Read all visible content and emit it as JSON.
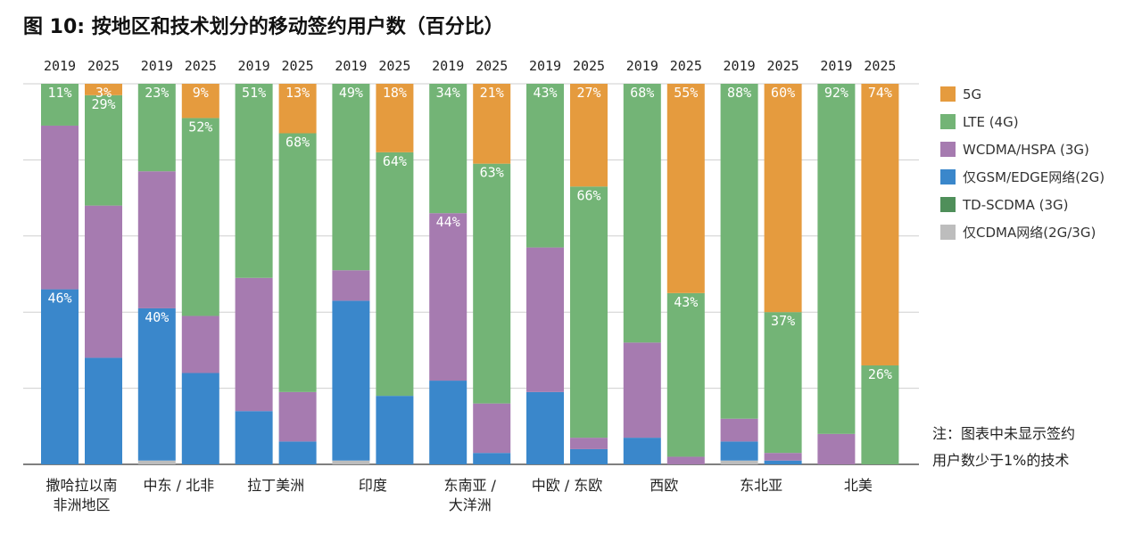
{
  "title": "图 10: 按地区和技术划分的移动签约用户数（百分比）",
  "note": [
    "注：图表中未显示签约",
    "用户数少于1%的技术"
  ],
  "chart_data": {
    "type": "bar",
    "stacked": true,
    "percent": true,
    "title": "图 10: 按地区和技术划分的移动签约用户数（百分比）",
    "xlabel": "",
    "ylabel": "",
    "ylim": [
      0,
      100
    ],
    "grid": true,
    "legend_position": "right",
    "years": [
      "2019",
      "2025"
    ],
    "regions": [
      {
        "name": [
          "撒哈拉以南",
          "非洲地区"
        ]
      },
      {
        "name": [
          "中东 / 北非"
        ]
      },
      {
        "name": [
          "拉丁美洲"
        ]
      },
      {
        "name": [
          "印度"
        ]
      },
      {
        "name": [
          "东南亚 /",
          "大洋洲"
        ]
      },
      {
        "name": [
          "中欧 / 东欧"
        ]
      },
      {
        "name": [
          "西欧"
        ]
      },
      {
        "name": [
          "东北亚"
        ]
      },
      {
        "name": [
          "北美"
        ]
      }
    ],
    "series": [
      {
        "key": "cdma",
        "name": "仅CDMA网络(2G/3G)",
        "color": "#bdbdbd"
      },
      {
        "key": "gsm",
        "name": "仅GSM/EDGE网络(2G)",
        "color": "#3a87cb"
      },
      {
        "key": "tdscdma",
        "name": "TD-SCDMA (3G)",
        "color": "#4f8f5a"
      },
      {
        "key": "wcdma",
        "name": "WCDMA/HSPA (3G)",
        "color": "#a67bb0"
      },
      {
        "key": "lte",
        "name": "LTE (4G)",
        "color": "#73b476"
      },
      {
        "key": "g5",
        "name": "5G",
        "color": "#e59b3e"
      }
    ],
    "legend_order": [
      "g5",
      "lte",
      "wcdma",
      "gsm",
      "tdscdma",
      "cdma"
    ],
    "bars": [
      {
        "region": 0,
        "year": "2019",
        "values": {
          "cdma": 0,
          "gsm": 46,
          "tdscdma": 0,
          "wcdma": 43,
          "lte": 11,
          "g5": 0
        },
        "labels": {
          "lte": "11%",
          "gsm": "46%"
        }
      },
      {
        "region": 0,
        "year": "2025",
        "values": {
          "cdma": 0,
          "gsm": 28,
          "tdscdma": 0,
          "wcdma": 40,
          "lte": 29,
          "g5": 3
        },
        "labels": {
          "g5": "3%",
          "lte": "29%"
        }
      },
      {
        "region": 1,
        "year": "2019",
        "values": {
          "cdma": 1,
          "gsm": 40,
          "tdscdma": 0,
          "wcdma": 36,
          "lte": 23,
          "g5": 0
        },
        "labels": {
          "lte": "23%",
          "gsm": "40%"
        }
      },
      {
        "region": 1,
        "year": "2025",
        "values": {
          "cdma": 0,
          "gsm": 24,
          "tdscdma": 0,
          "wcdma": 15,
          "lte": 52,
          "g5": 9
        },
        "labels": {
          "g5": "9%",
          "lte": "52%"
        }
      },
      {
        "region": 2,
        "year": "2019",
        "values": {
          "cdma": 0,
          "gsm": 14,
          "tdscdma": 0,
          "wcdma": 35,
          "lte": 51,
          "g5": 0
        },
        "labels": {
          "lte": "51%"
        }
      },
      {
        "region": 2,
        "year": "2025",
        "values": {
          "cdma": 0,
          "gsm": 6,
          "tdscdma": 0,
          "wcdma": 13,
          "lte": 68,
          "g5": 13
        },
        "labels": {
          "g5": "13%",
          "lte": "68%"
        }
      },
      {
        "region": 3,
        "year": "2019",
        "values": {
          "cdma": 1,
          "gsm": 42,
          "tdscdma": 0,
          "wcdma": 8,
          "lte": 49,
          "g5": 0
        },
        "labels": {
          "lte": "49%"
        }
      },
      {
        "region": 3,
        "year": "2025",
        "values": {
          "cdma": 0,
          "gsm": 18,
          "tdscdma": 0,
          "wcdma": 0,
          "lte": 64,
          "g5": 18
        },
        "labels": {
          "g5": "18%",
          "lte": "64%"
        }
      },
      {
        "region": 4,
        "year": "2019",
        "values": {
          "cdma": 0,
          "gsm": 22,
          "tdscdma": 0,
          "wcdma": 44,
          "lte": 34,
          "g5": 0
        },
        "labels": {
          "lte": "34%",
          "wcdma": "44%"
        }
      },
      {
        "region": 4,
        "year": "2025",
        "values": {
          "cdma": 0,
          "gsm": 3,
          "tdscdma": 0,
          "wcdma": 13,
          "lte": 63,
          "g5": 21
        },
        "labels": {
          "g5": "21%",
          "lte": "63%"
        }
      },
      {
        "region": 5,
        "year": "2019",
        "values": {
          "cdma": 0,
          "gsm": 19,
          "tdscdma": 0,
          "wcdma": 38,
          "lte": 43,
          "g5": 0
        },
        "labels": {
          "lte": "43%"
        }
      },
      {
        "region": 5,
        "year": "2025",
        "values": {
          "cdma": 0,
          "gsm": 4,
          "tdscdma": 0,
          "wcdma": 3,
          "lte": 66,
          "g5": 27
        },
        "labels": {
          "g5": "27%",
          "lte": "66%"
        }
      },
      {
        "region": 6,
        "year": "2019",
        "values": {
          "cdma": 0,
          "gsm": 7,
          "tdscdma": 0,
          "wcdma": 25,
          "lte": 68,
          "g5": 0
        },
        "labels": {
          "lte": "68%"
        }
      },
      {
        "region": 6,
        "year": "2025",
        "values": {
          "cdma": 0,
          "gsm": 0,
          "tdscdma": 0,
          "wcdma": 2,
          "lte": 43,
          "g5": 55
        },
        "labels": {
          "g5": "55%",
          "lte": "43%"
        }
      },
      {
        "region": 7,
        "year": "2019",
        "values": {
          "cdma": 1,
          "gsm": 5,
          "tdscdma": 0,
          "wcdma": 6,
          "lte": 88,
          "g5": 0
        },
        "labels": {
          "lte": "88%"
        }
      },
      {
        "region": 7,
        "year": "2025",
        "values": {
          "cdma": 0,
          "gsm": 1,
          "tdscdma": 0,
          "wcdma": 2,
          "lte": 37,
          "g5": 60
        },
        "labels": {
          "g5": "60%",
          "lte": "37%"
        }
      },
      {
        "region": 8,
        "year": "2019",
        "values": {
          "cdma": 0,
          "gsm": 0,
          "tdscdma": 0,
          "wcdma": 8,
          "lte": 92,
          "g5": 0
        },
        "labels": {
          "lte": "92%"
        }
      },
      {
        "region": 8,
        "year": "2025",
        "values": {
          "cdma": 0,
          "gsm": 0,
          "tdscdma": 0,
          "wcdma": 0,
          "lte": 26,
          "g5": 74
        },
        "labels": {
          "g5": "74%",
          "lte": "26%"
        }
      }
    ]
  }
}
